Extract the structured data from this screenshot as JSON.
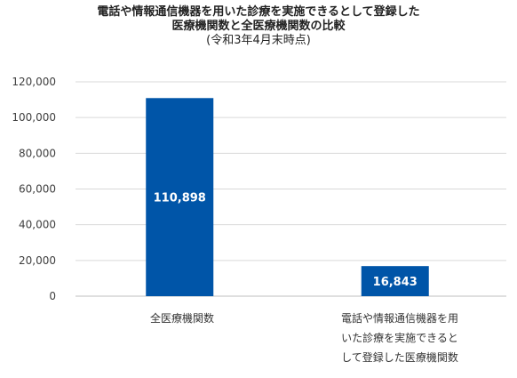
{
  "chart_data": {
    "type": "bar",
    "title_lines": [
      "電話や情報通信機器を用いた診療を実施できるとして登録した",
      "医療機関数と全医療機関数の比較",
      "(令和3年4月末時点)"
    ],
    "categories": [
      "全医療機関数",
      "電話や情報通信機器を用いた診療を実施できるとして登録した医療機関数"
    ],
    "category_label_lines": [
      [
        "全医療機関数"
      ],
      [
        "電話や情報通信機器を用",
        "いた診療を実施できると",
        "して登録した医療機関数"
      ]
    ],
    "values": [
      110898,
      16843
    ],
    "value_labels": [
      "110,898",
      "16,843"
    ],
    "ylim": [
      0,
      120000
    ],
    "yticks": [
      0,
      20000,
      40000,
      60000,
      80000,
      100000,
      120000
    ],
    "ytick_labels": [
      "0",
      "20,000",
      "40,000",
      "60,000",
      "80,000",
      "100,000",
      "120,000"
    ],
    "grid": true,
    "bar_color": "#0055a8",
    "grid_color": "#d9d9d9",
    "xlabel": "",
    "ylabel": ""
  }
}
